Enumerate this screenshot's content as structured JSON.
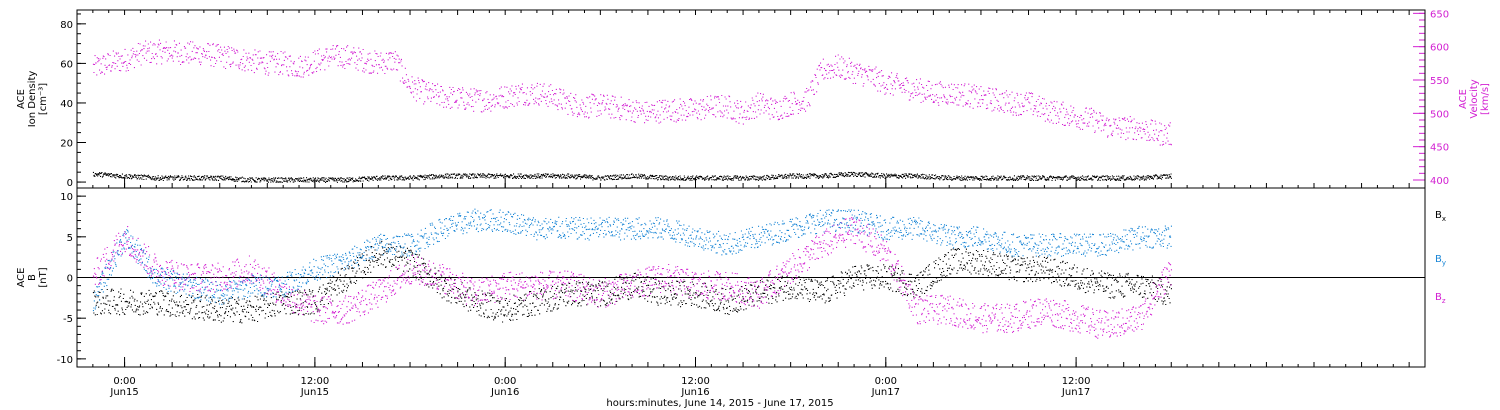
{
  "colors": {
    "black": "#000000",
    "magenta": "#d21fd2",
    "blue": "#1a86d6"
  },
  "x_axis": {
    "title": "hours:minutes, June 14, 2015 - June 17, 2015",
    "range_hours": [
      -3,
      82
    ],
    "ticks": [
      {
        "h": 0,
        "time": "0:00",
        "date": "Jun15"
      },
      {
        "h": 12,
        "time": "12:00",
        "date": "Jun15"
      },
      {
        "h": 24,
        "time": "0:00",
        "date": "Jun16"
      },
      {
        "h": 36,
        "time": "12:00",
        "date": "Jun16"
      },
      {
        "h": 48,
        "time": "0:00",
        "date": "Jun17"
      },
      {
        "h": 60,
        "time": "12:00",
        "date": "Jun17"
      }
    ]
  },
  "chart_data": [
    {
      "type": "scatter",
      "panel": "top",
      "ylabel_lines": [
        "ACE",
        "Ion Density",
        "[cm⁻³]"
      ],
      "ylabel2_lines": [
        "ACE",
        "Velocity",
        "[km/s]"
      ],
      "ylim": [
        -3,
        87
      ],
      "y_ticks": [
        0,
        20,
        40,
        60,
        80
      ],
      "y2lim": [
        388,
        655
      ],
      "y2_ticks": [
        400,
        450,
        500,
        550,
        600,
        650
      ],
      "series": [
        {
          "axis": "left",
          "color": "black",
          "x": [
            -2,
            0,
            2,
            4,
            6,
            8,
            10,
            12,
            14,
            16,
            18,
            20,
            22,
            24,
            26,
            28,
            30,
            32,
            34,
            36,
            38,
            40,
            42,
            44,
            46,
            48,
            50,
            52,
            54,
            56,
            58,
            60,
            62,
            64,
            66
          ],
          "y": [
            4,
            3,
            2,
            2,
            2,
            1,
            1,
            1,
            1,
            2,
            2,
            3,
            3,
            3,
            3,
            3,
            2,
            3,
            2,
            2,
            2,
            2,
            3,
            3,
            4,
            3,
            3,
            2,
            2,
            2,
            2,
            2,
            2,
            2,
            3
          ]
        },
        {
          "axis": "right",
          "color": "magenta",
          "x": [
            -2,
            -1,
            0,
            1,
            2,
            3,
            4,
            5,
            6,
            7,
            8,
            9,
            10,
            11,
            12,
            13,
            14,
            15,
            16,
            17,
            18,
            19,
            20,
            21,
            22,
            23,
            24,
            25,
            26,
            27,
            28,
            29,
            30,
            31,
            32,
            33,
            34,
            35,
            36,
            37,
            38,
            39,
            40,
            41,
            42,
            43,
            44,
            45,
            46,
            47,
            48,
            49,
            50,
            51,
            52,
            53,
            54,
            55,
            56,
            57,
            58,
            59,
            60,
            61,
            62,
            63,
            64,
            65,
            66
          ],
          "y": [
            568,
            575,
            580,
            590,
            592,
            592,
            590,
            590,
            585,
            583,
            578,
            575,
            575,
            570,
            578,
            585,
            585,
            580,
            575,
            580,
            540,
            530,
            525,
            522,
            520,
            520,
            525,
            530,
            530,
            525,
            515,
            510,
            512,
            508,
            505,
            500,
            505,
            505,
            505,
            510,
            510,
            500,
            515,
            505,
            515,
            520,
            565,
            570,
            562,
            555,
            545,
            540,
            535,
            530,
            530,
            528,
            522,
            520,
            515,
            515,
            505,
            500,
            495,
            490,
            480,
            478,
            478,
            470,
            468
          ]
        }
      ]
    },
    {
      "type": "scatter",
      "panel": "bottom",
      "ylabel_lines": [
        "ACE",
        "B",
        "[nT]"
      ],
      "ylim": [
        -11,
        11
      ],
      "y_ticks": [
        -10,
        -5,
        0,
        5,
        10
      ],
      "legend_position": "right",
      "series": [
        {
          "name": "Bx",
          "color": "black",
          "x": [
            -2,
            0,
            2,
            4,
            6,
            8,
            10,
            12,
            14,
            16,
            18,
            20,
            22,
            24,
            26,
            28,
            30,
            32,
            34,
            36,
            38,
            40,
            42,
            44,
            46,
            48,
            50,
            52,
            54,
            56,
            58,
            60,
            62,
            64,
            66
          ],
          "y": [
            -3,
            -3,
            -3,
            -3.5,
            -4,
            -4,
            -3,
            -3,
            0,
            3,
            2,
            -1,
            -3,
            -4,
            -3,
            -2,
            -2,
            -1,
            -2,
            -2,
            -3,
            -2,
            -1,
            -2,
            0,
            0,
            -1,
            2,
            2,
            1,
            1,
            0,
            -1,
            -1,
            -2
          ]
        },
        {
          "name": "By",
          "color": "blue",
          "x": [
            -2,
            0,
            2,
            4,
            6,
            8,
            10,
            12,
            14,
            16,
            18,
            20,
            22,
            24,
            26,
            28,
            30,
            32,
            34,
            36,
            38,
            40,
            42,
            44,
            46,
            48,
            50,
            52,
            54,
            56,
            58,
            60,
            62,
            64,
            66
          ],
          "y": [
            -3,
            5,
            0,
            -1,
            -2,
            -1,
            -1,
            1,
            2,
            4,
            4,
            6,
            7,
            7,
            6,
            6,
            6,
            6,
            6,
            5,
            4,
            5,
            6,
            7,
            7,
            6,
            6,
            5,
            5,
            4,
            4,
            4,
            4,
            5,
            5
          ]
        },
        {
          "name": "Bz",
          "color": "magenta",
          "x": [
            -2,
            0,
            2,
            4,
            6,
            8,
            10,
            12,
            14,
            16,
            18,
            20,
            22,
            24,
            26,
            28,
            30,
            32,
            34,
            36,
            38,
            40,
            42,
            44,
            46,
            48,
            50,
            52,
            54,
            56,
            58,
            60,
            62,
            64,
            66
          ],
          "y": [
            0,
            5,
            1,
            0,
            0,
            1,
            -2,
            -4,
            -4,
            -2,
            1,
            0,
            -2,
            -1,
            -1,
            -1,
            -2,
            -1,
            0,
            -1,
            -1,
            -2,
            1,
            4,
            6,
            3,
            -4,
            -4,
            -5,
            -5,
            -4,
            -5,
            -6,
            -5,
            1
          ]
        }
      ]
    }
  ],
  "legend": [
    {
      "base": "B",
      "sub": "x",
      "color": "black"
    },
    {
      "base": "B",
      "sub": "y",
      "color": "blue"
    },
    {
      "base": "B",
      "sub": "z",
      "color": "magenta"
    }
  ]
}
